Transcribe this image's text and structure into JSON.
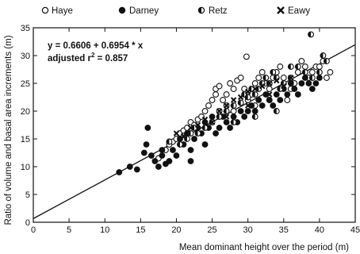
{
  "chart_data": {
    "type": "scatter",
    "title": "",
    "xlabel": "Mean dominant height over the period (m)",
    "ylabel": "Ratio of volume and basal area increments (m)",
    "xlim": [
      0,
      45
    ],
    "ylim": [
      0,
      35
    ],
    "xticks": [
      "0",
      "5",
      "10",
      "15",
      "20",
      "25",
      "30",
      "35",
      "40",
      "45"
    ],
    "yticks": [
      "0",
      "5",
      "10",
      "15",
      "20",
      "25",
      "30",
      "35"
    ],
    "grid": false,
    "legend_position": "top",
    "annotation": {
      "equation": "y = 0.6606 + 0.6954 * x",
      "r2_prefix": "adjusted  r",
      "r2_sup": "2",
      "r2_value": " = 0.857"
    },
    "regression": {
      "intercept": 0.6606,
      "slope": 0.6954
    },
    "series": [
      {
        "name": "Haye",
        "marker": "open-circle",
        "points": [
          [
            17.5,
            11.5
          ],
          [
            18.5,
            13
          ],
          [
            19,
            14
          ],
          [
            19.5,
            14.5
          ],
          [
            20,
            15
          ],
          [
            20.5,
            16
          ],
          [
            21,
            16.5
          ],
          [
            21.5,
            17
          ],
          [
            22,
            18
          ],
          [
            22.5,
            17.5
          ],
          [
            23,
            18.5
          ],
          [
            23.5,
            19
          ],
          [
            24,
            20
          ],
          [
            24.5,
            21
          ],
          [
            25,
            22
          ],
          [
            25.5,
            23
          ],
          [
            25.5,
            24
          ],
          [
            26,
            24.5
          ],
          [
            26.5,
            22
          ],
          [
            27,
            23
          ],
          [
            27.5,
            25
          ],
          [
            28,
            24
          ],
          [
            28.5,
            25.5
          ],
          [
            29,
            26
          ],
          [
            29.5,
            24
          ],
          [
            29.8,
            29.8
          ],
          [
            30,
            22
          ],
          [
            30.5,
            23
          ],
          [
            31,
            25
          ],
          [
            31.5,
            26
          ],
          [
            32,
            27
          ],
          [
            32.5,
            25
          ],
          [
            33,
            24
          ],
          [
            33.5,
            26
          ],
          [
            34,
            27
          ],
          [
            34.5,
            28
          ],
          [
            35,
            26
          ],
          [
            35.5,
            22
          ],
          [
            36,
            24
          ],
          [
            36.5,
            25
          ],
          [
            37,
            27
          ],
          [
            37.5,
            29
          ],
          [
            38,
            28
          ],
          [
            38.5,
            26
          ],
          [
            39,
            27
          ],
          [
            39.5,
            28
          ],
          [
            40,
            28
          ],
          [
            40.5,
            29
          ],
          [
            41,
            26
          ],
          [
            41.5,
            27
          ],
          [
            27,
            21
          ],
          [
            28,
            20
          ],
          [
            31,
            21
          ],
          [
            33,
            22
          ],
          [
            26,
            20
          ]
        ]
      },
      {
        "name": "Darney",
        "marker": "filled-circle",
        "points": [
          [
            12,
            9
          ],
          [
            13.5,
            10
          ],
          [
            14.5,
            9.5
          ],
          [
            15.5,
            12.5
          ],
          [
            15.8,
            14
          ],
          [
            16,
            17
          ],
          [
            16.5,
            12
          ],
          [
            17,
            11
          ],
          [
            17.5,
            10
          ],
          [
            18,
            12
          ],
          [
            18.5,
            10.5
          ],
          [
            19,
            11
          ],
          [
            19.5,
            13
          ],
          [
            20,
            12
          ],
          [
            20.5,
            15
          ],
          [
            21,
            14
          ],
          [
            21.5,
            16
          ],
          [
            22,
            13
          ],
          [
            22.5,
            15
          ],
          [
            23,
            17
          ],
          [
            23.5,
            16
          ],
          [
            24,
            18
          ],
          [
            24.5,
            17
          ],
          [
            25,
            19
          ],
          [
            25.5,
            16
          ],
          [
            26,
            17
          ],
          [
            26.5,
            19
          ],
          [
            27,
            18
          ],
          [
            27.5,
            17
          ],
          [
            28,
            19
          ],
          [
            28.5,
            18
          ],
          [
            29,
            20
          ],
          [
            29.5,
            19
          ],
          [
            30,
            20
          ],
          [
            30.5,
            21
          ],
          [
            31,
            20
          ],
          [
            31.5,
            22
          ],
          [
            32,
            21
          ],
          [
            32.5,
            23
          ],
          [
            33,
            22
          ],
          [
            33.5,
            21
          ],
          [
            34,
            23
          ],
          [
            34.5,
            22
          ],
          [
            35,
            24
          ],
          [
            35.5,
            23
          ],
          [
            36,
            25
          ],
          [
            36.5,
            24
          ],
          [
            37,
            23
          ],
          [
            37.5,
            25
          ],
          [
            38,
            26
          ],
          [
            38.5,
            25
          ],
          [
            39,
            24
          ],
          [
            39.5,
            25
          ],
          [
            40,
            26
          ],
          [
            24,
            14
          ],
          [
            22,
            11
          ],
          [
            18,
            13
          ]
        ]
      },
      {
        "name": "Retz",
        "marker": "half-circle",
        "points": [
          [
            19,
            14.5
          ],
          [
            20.5,
            14
          ],
          [
            21.5,
            15
          ],
          [
            22,
            16
          ],
          [
            22.5,
            17
          ],
          [
            23,
            16
          ],
          [
            24,
            17
          ],
          [
            25,
            18
          ],
          [
            26,
            19
          ],
          [
            27,
            20
          ],
          [
            28,
            21
          ],
          [
            29,
            21.5
          ],
          [
            29.5,
            23
          ],
          [
            30,
            22.5
          ],
          [
            30.5,
            24
          ],
          [
            31,
            23
          ],
          [
            31.5,
            24
          ],
          [
            32,
            25
          ],
          [
            32.5,
            26
          ],
          [
            33,
            25
          ],
          [
            33.5,
            27
          ],
          [
            34,
            26
          ],
          [
            34.5,
            24
          ],
          [
            35,
            25
          ],
          [
            36,
            26
          ],
          [
            37,
            28
          ],
          [
            38,
            27
          ],
          [
            38.8,
            33.8
          ],
          [
            39,
            26
          ],
          [
            40,
            27
          ],
          [
            40.5,
            30
          ],
          [
            41,
            29
          ],
          [
            36,
            28
          ],
          [
            34,
            20
          ],
          [
            31,
            19
          ],
          [
            28,
            18
          ]
        ]
      },
      {
        "name": "Eawy",
        "marker": "x-cross",
        "points": [
          [
            20,
            16
          ],
          [
            21,
            15.5
          ],
          [
            22,
            17
          ],
          [
            23,
            17.5
          ],
          [
            24,
            18.5
          ],
          [
            25,
            18
          ],
          [
            26,
            20
          ],
          [
            27,
            21
          ],
          [
            28,
            22
          ],
          [
            29,
            22.5
          ],
          [
            30,
            23.5
          ],
          [
            31,
            24
          ],
          [
            32,
            24.5
          ],
          [
            33,
            25
          ],
          [
            34,
            25.5
          ],
          [
            35,
            24.5
          ],
          [
            36,
            26
          ],
          [
            30,
            21
          ],
          [
            27,
            19
          ],
          [
            33,
            23
          ]
        ]
      }
    ]
  }
}
